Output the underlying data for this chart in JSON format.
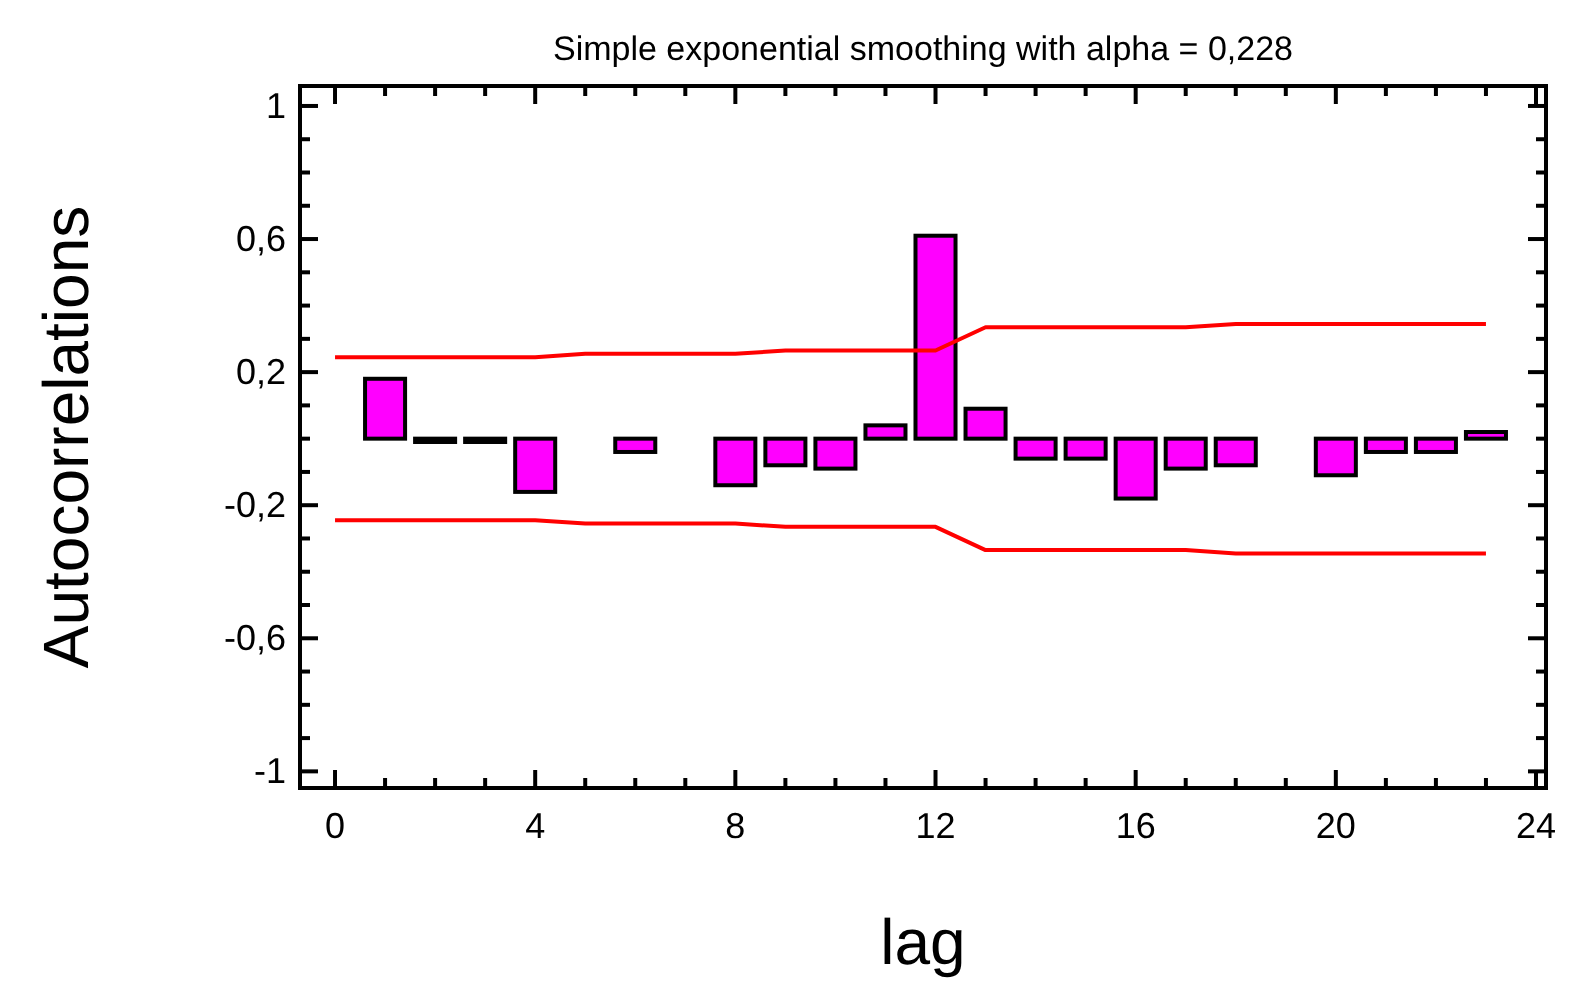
{
  "chart_data": {
    "type": "bar",
    "title": "Simple exponential smoothing with alpha = 0,228",
    "xlabel": "lag",
    "ylabel": "Autocorrelations",
    "series": [
      {
        "color": "#ff00ff",
        "x": [
          1,
          2,
          3,
          4,
          6,
          8,
          9,
          10,
          11,
          12,
          13,
          14,
          15,
          16,
          17,
          18,
          20,
          21,
          22,
          23
        ],
        "values": [
          0.18,
          -0.01,
          -0.01,
          -0.16,
          -0.04,
          -0.14,
          -0.08,
          -0.09,
          0.04,
          0.61,
          0.09,
          -0.06,
          -0.06,
          -0.18,
          -0.09,
          -0.08,
          -0.11,
          -0.04,
          -0.04,
          0.02
        ]
      },
      {
        "type": "line",
        "color": "#ff0000",
        "x": [
          0,
          4,
          5,
          8,
          9,
          12,
          13,
          17,
          18,
          23
        ],
        "values": [
          0.245,
          0.245,
          0.255,
          0.255,
          0.265,
          0.265,
          0.335,
          0.335,
          0.345,
          0.345
        ]
      },
      {
        "type": "line",
        "color": "#ff0000",
        "x": [
          0,
          4,
          5,
          8,
          9,
          12,
          13,
          17,
          18,
          23
        ],
        "values": [
          -0.245,
          -0.245,
          -0.255,
          -0.255,
          -0.265,
          -0.265,
          -0.335,
          -0.335,
          -0.345,
          -0.345
        ]
      }
    ],
    "xlim": [
      -0.7,
      24.2
    ],
    "ylim": [
      -1.05,
      1.06
    ],
    "xticks": [
      0,
      {
        "value": 1,
        "label": null
      },
      {
        "value": 2,
        "label": null
      },
      {
        "value": 3,
        "label": null
      },
      4,
      {
        "value": 5,
        "label": null
      },
      {
        "value": 6,
        "label": null
      },
      {
        "value": 7,
        "label": null
      },
      8,
      {
        "value": 9,
        "label": null
      },
      {
        "value": 10,
        "label": null
      },
      {
        "value": 11,
        "label": null
      },
      12,
      {
        "value": 13,
        "label": null
      },
      {
        "value": 14,
        "label": null
      },
      {
        "value": 15,
        "label": null
      },
      16,
      {
        "value": 17,
        "label": null
      },
      {
        "value": 18,
        "label": null
      },
      {
        "value": 19,
        "label": null
      },
      20,
      {
        "value": 21,
        "label": null
      },
      {
        "value": 22,
        "label": null
      },
      {
        "value": 23,
        "label": null
      },
      24
    ],
    "yticks": [
      {
        "value": -1,
        "label": "-1"
      },
      {
        "value": -0.9,
        "label": null
      },
      {
        "value": -0.8,
        "label": null
      },
      {
        "value": -0.7,
        "label": null
      },
      {
        "value": -0.6,
        "label": "-0,6"
      },
      {
        "value": -0.5,
        "label": null
      },
      {
        "value": -0.4,
        "label": null
      },
      {
        "value": -0.3,
        "label": null
      },
      {
        "value": -0.2,
        "label": "-0,2"
      },
      {
        "value": -0.1,
        "label": null
      },
      {
        "value": 0,
        "label": null
      },
      {
        "value": 0.1,
        "label": null
      },
      {
        "value": 0.2,
        "label": "0,2"
      },
      {
        "value": 0.3,
        "label": null
      },
      {
        "value": 0.4,
        "label": null
      },
      {
        "value": 0.5,
        "label": null
      },
      {
        "value": 0.6,
        "label": "0,6"
      },
      {
        "value": 0.7,
        "label": null
      },
      {
        "value": 0.8,
        "label": null
      },
      {
        "value": 0.9,
        "label": null
      },
      {
        "value": 1,
        "label": "1"
      }
    ],
    "grid": false
  }
}
